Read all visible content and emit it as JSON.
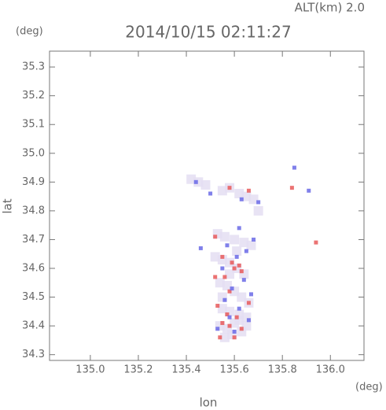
{
  "chart_data": {
    "type": "scatter",
    "title": "2014/10/15 02:11:27",
    "subtitle": "ALT(km) 2.0",
    "y_unit": "(deg)",
    "x_unit": "(deg)",
    "xlabel": "lon",
    "ylabel": "lat",
    "xlim": [
      134.83,
      136.14
    ],
    "ylim": [
      34.28,
      35.355
    ],
    "xticks": [
      {
        "value": 135,
        "label": "135.0"
      },
      135.2,
      135.4,
      135.6,
      135.8,
      {
        "value": 136,
        "label": "136.0"
      }
    ],
    "yticks": [
      34.3,
      34.4,
      34.5,
      34.6,
      34.7,
      34.8,
      34.9,
      {
        "value": 35,
        "label": "35.0"
      },
      35.1,
      35.2,
      35.3
    ],
    "series": [
      {
        "color": "#e4def2",
        "x": [
          135.42,
          135.45,
          135.48,
          135.55,
          135.58,
          135.62,
          135.65,
          135.68,
          135.7,
          135.53,
          135.56,
          135.6,
          135.64,
          135.67,
          135.52,
          135.55,
          135.58,
          135.61,
          135.64,
          135.54,
          135.57,
          135.6,
          135.63,
          135.66,
          135.55,
          135.58,
          135.62,
          135.65,
          135.54,
          135.57,
          135.6,
          135.63,
          135.56,
          135.59,
          135.62,
          135.65,
          135.55,
          135.58,
          135.61
        ],
        "y": [
          34.91,
          34.9,
          34.89,
          34.87,
          34.88,
          34.86,
          34.85,
          34.84,
          34.8,
          34.72,
          34.71,
          34.7,
          34.69,
          34.68,
          34.64,
          34.63,
          34.62,
          34.6,
          34.58,
          34.55,
          34.54,
          34.52,
          34.5,
          34.48,
          34.46,
          34.45,
          34.44,
          34.43,
          34.4,
          34.39,
          34.41,
          34.38,
          34.36,
          34.37,
          34.42,
          34.4,
          34.5,
          34.58,
          34.66
        ]
      },
      {
        "color": "#e85a5a",
        "x": [
          135.58,
          135.66,
          135.84,
          135.94,
          135.52,
          135.55,
          135.59,
          135.62,
          135.6,
          135.63,
          135.56,
          135.58,
          135.66,
          135.53,
          135.57,
          135.61,
          135.55,
          135.58,
          135.63,
          135.54,
          135.6,
          135.52
        ],
        "y": [
          34.88,
          34.87,
          34.88,
          34.69,
          34.71,
          34.64,
          34.62,
          34.61,
          34.6,
          34.59,
          34.57,
          34.52,
          34.48,
          34.47,
          34.44,
          34.43,
          34.41,
          34.4,
          34.39,
          34.36,
          34.36,
          34.57
        ]
      },
      {
        "color": "#6a6ae6",
        "x": [
          135.44,
          135.5,
          135.63,
          135.7,
          135.85,
          135.91,
          135.46,
          135.62,
          135.68,
          135.57,
          135.65,
          135.61,
          135.55,
          135.64,
          135.59,
          135.67,
          135.56,
          135.62,
          135.58,
          135.66,
          135.6,
          135.53
        ],
        "y": [
          34.9,
          34.86,
          34.84,
          34.83,
          34.95,
          34.87,
          34.67,
          34.74,
          34.7,
          34.68,
          34.66,
          34.64,
          34.6,
          34.56,
          34.53,
          34.51,
          34.49,
          34.46,
          34.43,
          34.42,
          34.38,
          34.39
        ]
      }
    ]
  }
}
